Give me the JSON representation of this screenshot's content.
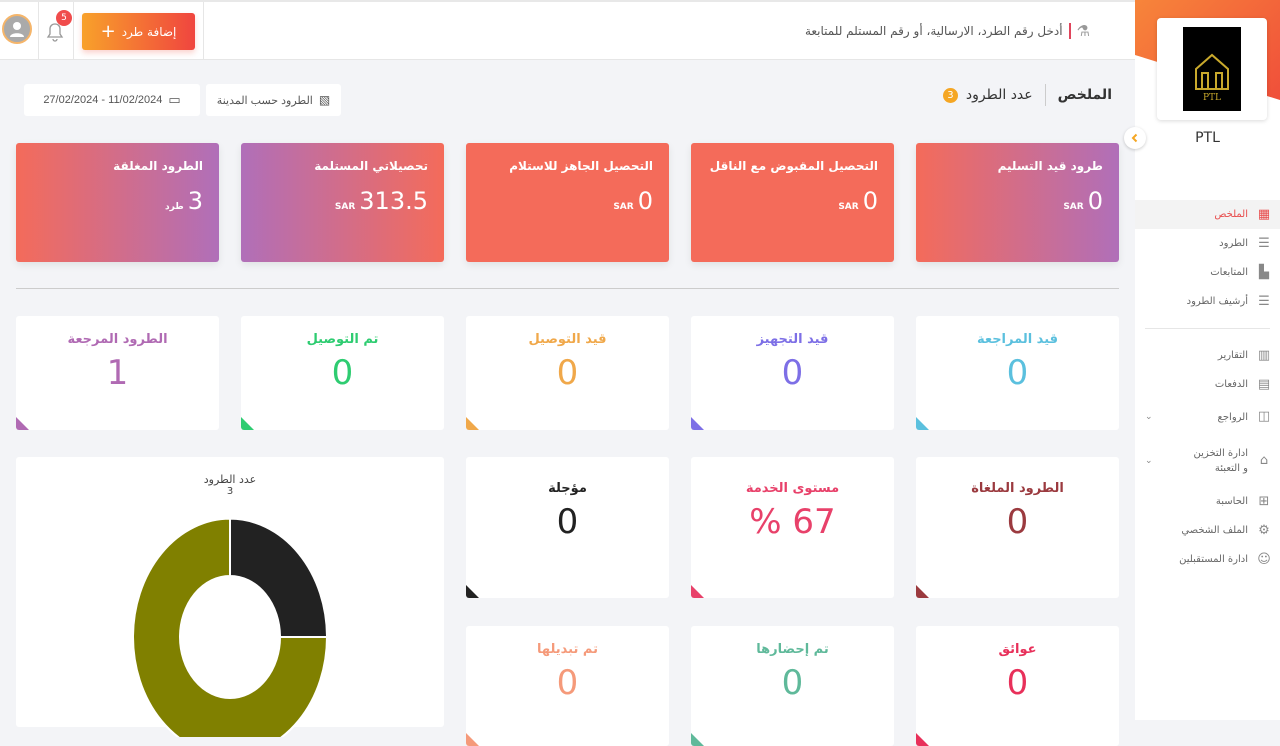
{
  "topbar": {
    "add_label": "إضافة طرد",
    "notifications": "5",
    "search_placeholder": "أدخل رقم الطرد، الارسالية، أو رقم المستلم للمتابعة"
  },
  "sidebar": {
    "brand": "PTL",
    "logo_text": "PTL",
    "items": [
      {
        "label": "الملخص",
        "icon": "grid-icon",
        "active": true
      },
      {
        "label": "الطرود",
        "icon": "rows-icon"
      },
      {
        "label": "المتابعات",
        "icon": "boxes-icon"
      },
      {
        "label": "أرشيف الطرود",
        "icon": "rows-icon"
      },
      {
        "label": "التقارير",
        "icon": "bar-chart-icon"
      },
      {
        "label": "الدفعات",
        "icon": "payments-icon"
      },
      {
        "label": "الرواجع",
        "icon": "returns-icon"
      },
      {
        "label": "ادارة التخزين و التعبئة",
        "icon": "warehouse-icon"
      },
      {
        "label": "الحاسبة",
        "icon": "calculator-icon"
      },
      {
        "label": "الملف الشخصي",
        "icon": "gear-icon"
      },
      {
        "label": "ادارة المستقبلين",
        "icon": "users-icon"
      }
    ]
  },
  "header": {
    "title": "الملخص",
    "count_label": "عدد الطرود",
    "count": "3",
    "city_btn": "الطرود حسب المدينة",
    "date_range": "27/02/2024 - 11/02/2024"
  },
  "summary_cards": [
    {
      "title": "طرود قيد التسليم",
      "value": "0",
      "unit": "SAR"
    },
    {
      "title": "التحصيل المقبوض مع الناقل",
      "value": "0",
      "unit": "SAR"
    },
    {
      "title": "التحصيل الجاهز للاستلام",
      "value": "0",
      "unit": "SAR"
    },
    {
      "title": "تحصيلاتي المستلمة",
      "value": "313.5",
      "unit": "SAR"
    },
    {
      "title": "الطرود المغلقة",
      "value": "3",
      "unit": "طرد"
    }
  ],
  "status_cards": [
    {
      "title": "قيد المراجعة",
      "value": "0",
      "color": "#5bc0de"
    },
    {
      "title": "قيد التجهيز",
      "value": "0",
      "color": "#7d6fe6"
    },
    {
      "title": "قيد التوصيل",
      "value": "0",
      "color": "#f0a84a"
    },
    {
      "title": "تم التوصيل",
      "value": "0",
      "color": "#2ecc71"
    },
    {
      "title": "الطرود المرجعة",
      "value": "1",
      "color": "#b06ab3"
    },
    {
      "title": "الطرود الملغاة",
      "value": "0",
      "color": "#9b3a3f"
    },
    {
      "title": "مستوى الخدمة",
      "value": "% 67",
      "color": "#e8416a"
    },
    {
      "title": "مؤجلة",
      "value": "0",
      "color": "#222222"
    },
    {
      "title": "عوائق",
      "value": "0",
      "color": "#e8305a"
    },
    {
      "title": "تم إحضارها",
      "value": "0",
      "color": "#5fb99a"
    },
    {
      "title": "تم تبديلها",
      "value": "0",
      "color": "#f59a7a"
    }
  ],
  "chart_data": {
    "type": "pie",
    "title": "عدد الطرود",
    "total_label": "3",
    "values": [
      25,
      75
    ],
    "unit": "percent",
    "colors": [
      "#222222",
      "#808000"
    ]
  }
}
